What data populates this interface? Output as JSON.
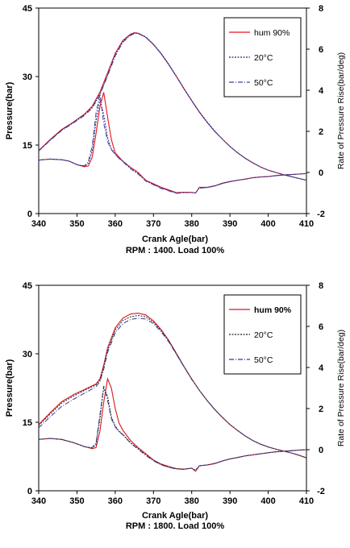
{
  "chart_data": [
    {
      "type": "line",
      "xlabel": "Crank Agle(bar)",
      "caption": "RPM : 1400. Load 100%",
      "ylabel": "Pressure(bar)",
      "y2label": "Rate of Pressure Rise(bar/deg)",
      "xlim": [
        340,
        410
      ],
      "ylim": [
        0,
        45
      ],
      "y2lim": [
        -2,
        8
      ],
      "xticks": [
        "340",
        "350",
        "360",
        "370",
        "380",
        "390",
        "400",
        "410"
      ],
      "yticks": [
        "0",
        "15",
        "30",
        "45"
      ],
      "y2ticks": [
        "-2",
        "0",
        "2",
        "4",
        "6",
        "8"
      ],
      "legend_position": "top-right",
      "legend": [
        "hum 90%",
        "20°C",
        "50°C"
      ],
      "series": [
        {
          "name": "hum 90%",
          "axis": "left",
          "color": "#e8141b",
          "x": [
            340,
            343,
            346,
            349,
            352,
            354,
            356,
            358,
            360,
            362,
            364,
            365,
            366,
            368,
            370,
            372,
            374,
            376,
            378,
            380,
            382,
            384,
            386,
            388,
            390,
            392,
            394,
            396,
            398,
            400,
            402,
            404,
            406,
            408,
            410
          ],
          "y": [
            13.8,
            16.2,
            18.4,
            20.0,
            21.8,
            23.5,
            26.6,
            30.8,
            35.1,
            37.9,
            39.3,
            39.6,
            39.5,
            38.6,
            37.0,
            35.0,
            32.6,
            30.0,
            27.3,
            24.7,
            22.2,
            20.0,
            18.0,
            16.3,
            14.7,
            13.3,
            12.1,
            11.1,
            10.2,
            9.5,
            9.0,
            8.5,
            8.1,
            7.7,
            7.3
          ]
        },
        {
          "name": "20°C",
          "axis": "left",
          "color": "#1a237e",
          "x": [
            340,
            343,
            346,
            349,
            352,
            354,
            356,
            358,
            360,
            362,
            364,
            365,
            366,
            368,
            370,
            372,
            374,
            376,
            378,
            380,
            382,
            384,
            386,
            388,
            390,
            392,
            394,
            396,
            398,
            400,
            402,
            404,
            406,
            408,
            410
          ],
          "y": [
            13.7,
            16.1,
            18.3,
            19.9,
            21.7,
            23.3,
            26.2,
            30.4,
            34.8,
            37.7,
            39.2,
            39.5,
            39.5,
            38.7,
            37.1,
            35.1,
            32.7,
            30.1,
            27.4,
            24.8,
            22.3,
            20.1,
            18.1,
            16.3,
            14.7,
            13.3,
            12.1,
            11.1,
            10.2,
            9.5,
            9.0,
            8.5,
            8.1,
            7.7,
            7.3
          ]
        },
        {
          "name": "50°C",
          "axis": "left",
          "color": "#39439a",
          "x": [
            340,
            343,
            346,
            349,
            352,
            354,
            356,
            358,
            360,
            362,
            364,
            365,
            366,
            368,
            370,
            372,
            374,
            376,
            378,
            380,
            382,
            384,
            386,
            388,
            390,
            392,
            394,
            396,
            398,
            400,
            402,
            404,
            406,
            408,
            410
          ],
          "y": [
            13.7,
            16.0,
            18.2,
            19.8,
            21.5,
            23.1,
            26.0,
            30.1,
            34.5,
            37.5,
            39.0,
            39.4,
            39.4,
            38.6,
            37.0,
            35.0,
            32.6,
            30.0,
            27.3,
            24.7,
            22.2,
            20.0,
            18.0,
            16.3,
            14.7,
            13.3,
            12.1,
            11.1,
            10.2,
            9.5,
            9.0,
            8.5,
            8.1,
            7.7,
            7.3
          ]
        },
        {
          "name": "hum 90%",
          "axis": "right",
          "color": "#e8141b",
          "x": [
            340,
            343,
            346,
            348,
            350,
            352,
            353,
            354,
            355,
            356,
            357,
            358,
            359,
            360,
            361,
            362,
            364,
            366,
            368,
            370,
            372,
            374,
            376,
            378,
            380,
            381,
            382,
            384,
            386,
            388,
            390,
            392,
            394,
            396,
            398,
            400,
            402,
            404,
            406,
            408,
            410
          ],
          "y": [
            0.6,
            0.65,
            0.62,
            0.55,
            0.38,
            0.28,
            0.32,
            0.75,
            1.9,
            3.2,
            3.9,
            2.7,
            1.6,
            0.95,
            0.75,
            0.55,
            0.25,
            0.0,
            -0.38,
            -0.55,
            -0.72,
            -0.85,
            -0.98,
            -0.96,
            -0.97,
            -1.0,
            -0.72,
            -0.72,
            -0.65,
            -0.52,
            -0.44,
            -0.38,
            -0.32,
            -0.25,
            -0.22,
            -0.2,
            -0.15,
            -0.12,
            -0.1,
            -0.08,
            -0.05
          ]
        },
        {
          "name": "20°C",
          "axis": "right",
          "color": "#1a237e",
          "x": [
            340,
            343,
            346,
            348,
            350,
            352,
            353,
            354,
            355,
            356,
            357,
            358,
            359,
            360,
            361,
            362,
            364,
            366,
            368,
            370,
            372,
            374,
            376,
            378,
            380,
            381,
            382,
            384,
            386,
            388,
            390,
            392,
            394,
            396,
            398,
            400,
            402,
            404,
            406,
            408,
            410
          ],
          "y": [
            0.6,
            0.65,
            0.62,
            0.55,
            0.38,
            0.3,
            0.45,
            1.05,
            2.5,
            3.55,
            2.8,
            1.7,
            1.15,
            0.9,
            0.7,
            0.55,
            0.2,
            -0.05,
            -0.4,
            -0.58,
            -0.75,
            -0.88,
            -1.0,
            -0.98,
            -0.98,
            -1.0,
            -0.75,
            -0.73,
            -0.66,
            -0.53,
            -0.45,
            -0.38,
            -0.33,
            -0.26,
            -0.22,
            -0.2,
            -0.16,
            -0.12,
            -0.1,
            -0.08,
            -0.05
          ]
        },
        {
          "name": "50°C",
          "axis": "right",
          "color": "#39439a",
          "x": [
            340,
            343,
            346,
            348,
            350,
            352,
            353,
            354,
            355,
            356,
            357,
            358,
            359,
            360,
            361,
            362,
            364,
            366,
            368,
            370,
            372,
            374,
            376,
            378,
            380,
            381,
            382,
            384,
            386,
            388,
            390,
            392,
            394,
            396,
            398,
            400,
            402,
            404,
            406,
            408,
            410
          ],
          "y": [
            0.6,
            0.65,
            0.62,
            0.55,
            0.38,
            0.32,
            0.55,
            1.3,
            2.9,
            3.8,
            2.4,
            1.5,
            1.1,
            0.88,
            0.68,
            0.52,
            0.18,
            -0.08,
            -0.42,
            -0.6,
            -0.78,
            -0.9,
            -1.02,
            -0.98,
            -0.98,
            -1.0,
            -0.76,
            -0.74,
            -0.66,
            -0.54,
            -0.45,
            -0.38,
            -0.33,
            -0.26,
            -0.22,
            -0.2,
            -0.16,
            -0.12,
            -0.1,
            -0.08,
            -0.05
          ]
        }
      ]
    },
    {
      "type": "line",
      "xlabel": "Crank Agle(bar)",
      "caption": "RPM : 1800. Load 100%",
      "ylabel": "Pressure(bar)",
      "y2label": "Rate of Pressure Rise(bar/deg)",
      "xlim": [
        340,
        410
      ],
      "ylim": [
        0,
        45
      ],
      "y2lim": [
        -2,
        8
      ],
      "xticks": [
        "340",
        "350",
        "360",
        "370",
        "380",
        "390",
        "400",
        "410"
      ],
      "yticks": [
        "0",
        "15",
        "30",
        "45"
      ],
      "y2ticks": [
        "-2",
        "0",
        "2",
        "4",
        "6",
        "8"
      ],
      "legend_position": "top-right",
      "legend": [
        "hum 90%",
        "20°C",
        "50°C"
      ],
      "series": [
        {
          "name": "hum 90%",
          "axis": "left",
          "color": "#d71920",
          "x": [
            340,
            343,
            346,
            349,
            352,
            354,
            355,
            356,
            357,
            358,
            360,
            362,
            364,
            366,
            368,
            370,
            372,
            374,
            376,
            378,
            380,
            382,
            384,
            386,
            388,
            390,
            392,
            394,
            396,
            398,
            400,
            402,
            404,
            406,
            408,
            410
          ],
          "y": [
            14.5,
            17.1,
            19.5,
            21.0,
            22.2,
            23.0,
            23.4,
            24.5,
            27.5,
            31.3,
            35.7,
            37.8,
            38.7,
            38.9,
            38.5,
            37.2,
            35.3,
            32.9,
            30.1,
            27.2,
            24.5,
            22.0,
            19.8,
            17.8,
            16.1,
            14.5,
            13.2,
            12.0,
            11.0,
            10.2,
            9.6,
            9.1,
            8.7,
            8.3,
            7.8,
            7.2
          ]
        },
        {
          "name": "20°C",
          "axis": "left",
          "color": "#222222",
          "x": [
            340,
            343,
            346,
            349,
            352,
            354,
            355,
            356,
            357,
            358,
            360,
            362,
            364,
            366,
            368,
            370,
            372,
            374,
            376,
            378,
            380,
            382,
            384,
            386,
            388,
            390,
            392,
            394,
            396,
            398,
            400,
            402,
            404,
            406,
            408,
            410
          ],
          "y": [
            14.3,
            16.8,
            19.2,
            20.7,
            22.0,
            22.8,
            23.2,
            24.2,
            27.0,
            30.8,
            35.2,
            37.3,
            38.1,
            38.4,
            38.1,
            36.9,
            35.1,
            32.8,
            30.0,
            27.2,
            24.5,
            22.0,
            19.8,
            17.8,
            16.1,
            14.5,
            13.2,
            12.0,
            11.0,
            10.2,
            9.6,
            9.1,
            8.7,
            8.3,
            7.8,
            7.2
          ]
        },
        {
          "name": "50°C",
          "axis": "left",
          "color": "#2e3a8c",
          "x": [
            340,
            343,
            346,
            349,
            352,
            354,
            355,
            356,
            357,
            358,
            360,
            362,
            364,
            366,
            368,
            370,
            372,
            374,
            376,
            378,
            380,
            382,
            384,
            386,
            388,
            390,
            392,
            394,
            396,
            398,
            400,
            402,
            404,
            406,
            408,
            410
          ],
          "y": [
            13.8,
            16.2,
            18.5,
            20.0,
            21.4,
            22.3,
            22.8,
            23.9,
            26.6,
            30.3,
            34.6,
            36.6,
            37.5,
            37.8,
            37.6,
            36.6,
            34.8,
            32.6,
            29.9,
            27.1,
            24.4,
            22.0,
            19.8,
            17.8,
            16.1,
            14.5,
            13.2,
            12.0,
            11.0,
            10.2,
            9.6,
            9.1,
            8.7,
            8.3,
            7.8,
            7.2
          ]
        },
        {
          "name": "hum 90%",
          "axis": "right",
          "color": "#d71920",
          "x": [
            340,
            343,
            346,
            349,
            352,
            354,
            355,
            356,
            357,
            358,
            359,
            360,
            361,
            362,
            364,
            366,
            368,
            370,
            372,
            374,
            376,
            378,
            380,
            381,
            382,
            384,
            386,
            388,
            390,
            392,
            394,
            396,
            398,
            400,
            402,
            404,
            406,
            408,
            410
          ],
          "y": [
            0.5,
            0.55,
            0.5,
            0.35,
            0.15,
            0.05,
            0.1,
            0.9,
            2.3,
            3.45,
            3.0,
            2.0,
            1.3,
            0.95,
            0.45,
            0.1,
            -0.2,
            -0.5,
            -0.7,
            -0.82,
            -0.92,
            -0.95,
            -0.9,
            -1.05,
            -0.78,
            -0.75,
            -0.68,
            -0.55,
            -0.45,
            -0.38,
            -0.3,
            -0.25,
            -0.2,
            -0.15,
            -0.1,
            -0.08,
            -0.05,
            -0.02,
            0.0
          ]
        },
        {
          "name": "20°C",
          "axis": "right",
          "color": "#222222",
          "x": [
            340,
            343,
            346,
            349,
            352,
            354,
            355,
            356,
            357,
            358,
            359,
            360,
            361,
            362,
            364,
            366,
            368,
            370,
            372,
            374,
            376,
            378,
            380,
            381,
            382,
            384,
            386,
            388,
            390,
            392,
            394,
            396,
            398,
            400,
            402,
            404,
            406,
            408,
            410
          ],
          "y": [
            0.5,
            0.55,
            0.5,
            0.35,
            0.15,
            0.08,
            0.25,
            1.5,
            3.0,
            2.6,
            1.6,
            1.15,
            0.9,
            0.75,
            0.35,
            0.05,
            -0.25,
            -0.52,
            -0.72,
            -0.85,
            -0.93,
            -0.95,
            -0.9,
            -1.0,
            -0.78,
            -0.74,
            -0.67,
            -0.55,
            -0.45,
            -0.38,
            -0.3,
            -0.25,
            -0.2,
            -0.15,
            -0.1,
            -0.08,
            -0.05,
            -0.02,
            0.0
          ]
        },
        {
          "name": "50°C",
          "axis": "right",
          "color": "#2e3a8c",
          "x": [
            340,
            343,
            346,
            349,
            352,
            354,
            355,
            356,
            357,
            358,
            359,
            360,
            361,
            362,
            364,
            366,
            368,
            370,
            372,
            374,
            376,
            378,
            380,
            381,
            382,
            384,
            386,
            388,
            390,
            392,
            394,
            396,
            398,
            400,
            402,
            404,
            406,
            408,
            410
          ],
          "y": [
            0.5,
            0.55,
            0.5,
            0.35,
            0.15,
            0.1,
            0.35,
            1.7,
            3.1,
            2.4,
            1.5,
            1.1,
            0.88,
            0.72,
            0.32,
            0.02,
            -0.28,
            -0.54,
            -0.74,
            -0.86,
            -0.94,
            -0.96,
            -0.9,
            -1.0,
            -0.79,
            -0.74,
            -0.67,
            -0.55,
            -0.45,
            -0.38,
            -0.3,
            -0.25,
            -0.2,
            -0.15,
            -0.1,
            -0.08,
            -0.05,
            -0.02,
            0.0
          ]
        }
      ]
    }
  ]
}
